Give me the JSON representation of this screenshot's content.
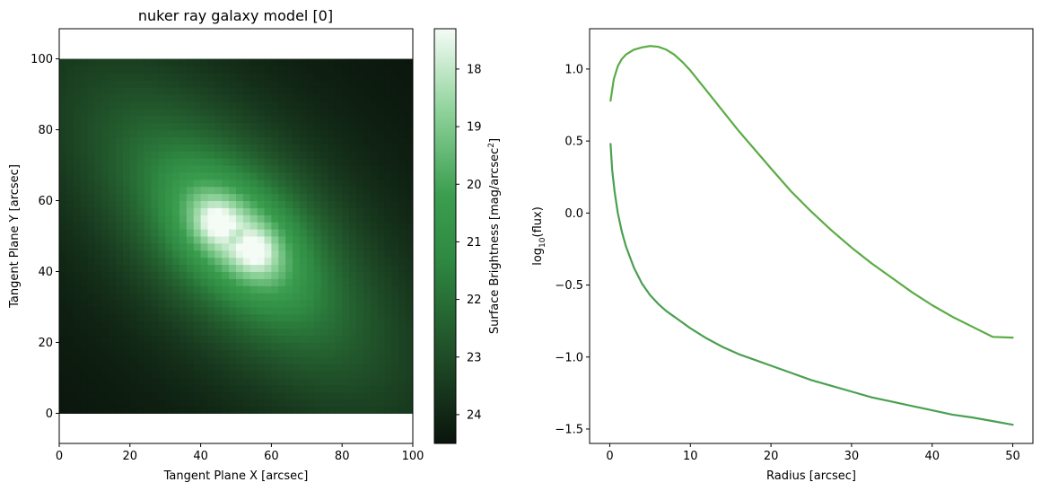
{
  "chart_data": [
    {
      "type": "heatmap",
      "title": "nuker ray galaxy model [0]",
      "xlabel": "Tangent Plane X [arcsec]",
      "ylabel": "Tangent Plane Y [arcsec]",
      "xlim": [
        0,
        100
      ],
      "ylim": [
        -8.5,
        108.5
      ],
      "image_extent": [
        0,
        100,
        0,
        100
      ],
      "xticks": [
        0,
        20,
        40,
        60,
        80,
        100
      ],
      "yticks": [
        0,
        20,
        40,
        60,
        80,
        100
      ],
      "colormap": [
        "#0a140c",
        "#1e4a26",
        "#2f8a42",
        "#3b9e4f",
        "#8ed29a",
        "#f4fcf5"
      ],
      "colorbar": {
        "label_text": "Surface Brightness [mag/arcsec",
        "label_sup": "2",
        "label_close": "]",
        "range": [
          17.3,
          24.5
        ],
        "reversed": true,
        "ticks": [
          18,
          19,
          20,
          21,
          22,
          23,
          24
        ]
      },
      "model": {
        "center": [
          50,
          50
        ],
        "bright_lobes": [
          [
            44,
            54
          ],
          [
            56,
            46
          ]
        ],
        "brightest_mag": 17.4,
        "faintest_mag": 24.4
      }
    },
    {
      "type": "line",
      "title": "",
      "xlabel": "Radius [arcsec]",
      "ylabel_main": "log",
      "ylabel_sub": "10",
      "ylabel_tail": "(flux)",
      "xlim": [
        -2.5,
        52.5
      ],
      "ylim": [
        -1.6,
        1.28
      ],
      "xticks": [
        0,
        10,
        20,
        30,
        40,
        50
      ],
      "yticks": [
        1.0,
        0.5,
        0.0,
        -0.5,
        -1.0,
        -1.5
      ],
      "ytick_labels": [
        "1.0",
        "0.5",
        "0.0",
        "−0.5",
        "−1.0",
        "−1.5"
      ],
      "series": [
        {
          "color": "#5aac44",
          "x": [
            0.1,
            0.5,
            1,
            1.5,
            2,
            3,
            4,
            5,
            6,
            7,
            8,
            9,
            10,
            12,
            14,
            16,
            18,
            20,
            22.5,
            25,
            27.5,
            30,
            32.5,
            35,
            37.5,
            40,
            42.5,
            45,
            47.5,
            50
          ],
          "y": [
            0.78,
            0.93,
            1.02,
            1.07,
            1.1,
            1.135,
            1.15,
            1.16,
            1.155,
            1.135,
            1.1,
            1.05,
            0.99,
            0.85,
            0.71,
            0.57,
            0.44,
            0.31,
            0.15,
            0.01,
            -0.12,
            -0.24,
            -0.35,
            -0.45,
            -0.55,
            -0.64,
            -0.72,
            -0.79,
            -0.86,
            -0.865
          ]
        },
        {
          "color": "#4aa050",
          "x": [
            0.1,
            0.3,
            0.6,
            1,
            1.5,
            2,
            3,
            4,
            5,
            6,
            7,
            8,
            10,
            12,
            14,
            16,
            18,
            20,
            22.5,
            25,
            27.5,
            30,
            32.5,
            35,
            37.5,
            40,
            42.5,
            45,
            47.5,
            50
          ],
          "y": [
            0.48,
            0.3,
            0.15,
            0.0,
            -0.13,
            -0.23,
            -0.38,
            -0.49,
            -0.57,
            -0.63,
            -0.68,
            -0.72,
            -0.8,
            -0.87,
            -0.93,
            -0.98,
            -1.02,
            -1.06,
            -1.11,
            -1.16,
            -1.2,
            -1.24,
            -1.28,
            -1.31,
            -1.34,
            -1.37,
            -1.4,
            -1.42,
            -1.445,
            -1.47
          ]
        }
      ]
    }
  ]
}
